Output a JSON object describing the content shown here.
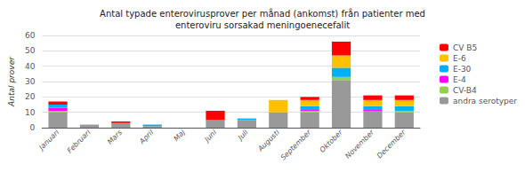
{
  "chart_data": {
    "type": "bar",
    "stacked": true,
    "title": "Antal typade enterovirusprover per månad (ankomst) från patienter med\nenteroviru sorsakad meningoenecefalit",
    "y_label": "Antal prover",
    "categories": [
      "Januari",
      "Februari",
      "Mars",
      "April",
      "Maj",
      "Juni",
      "Juli",
      "Augusti",
      "September",
      "Oktober",
      "November",
      "December"
    ],
    "series": [
      {
        "name": "andra serotyper",
        "color": "#999999",
        "values": [
          10,
          2,
          3,
          1,
          0,
          5,
          5,
          10,
          10,
          31,
          11,
          10
        ]
      },
      {
        "name": "CV-B4",
        "color": "#92d050",
        "values": [
          1,
          0,
          0,
          0,
          0,
          0,
          0,
          0,
          1,
          2,
          0,
          1
        ]
      },
      {
        "name": "E-4",
        "color": "#ff00ff",
        "values": [
          2,
          0,
          0,
          0,
          0,
          0,
          0,
          0,
          1,
          0,
          1,
          0
        ]
      },
      {
        "name": "E-30",
        "color": "#00b0f0",
        "values": [
          2,
          0,
          0,
          1,
          0,
          0,
          1,
          0,
          2,
          6,
          2,
          3
        ]
      },
      {
        "name": "E-6",
        "color": "#ffc000",
        "values": [
          0,
          0,
          0,
          0,
          0,
          0,
          0,
          8,
          4,
          8,
          4,
          4
        ]
      },
      {
        "name": "CV B5",
        "color": "#ff0000",
        "values": [
          2,
          0,
          1,
          0,
          0,
          6,
          0,
          0,
          2,
          9,
          3,
          3
        ]
      }
    ],
    "ylim": [
      0,
      60
    ],
    "yticks": [
      0,
      10,
      20,
      30,
      40,
      50,
      60
    ],
    "grid": true,
    "legend": "right"
  }
}
